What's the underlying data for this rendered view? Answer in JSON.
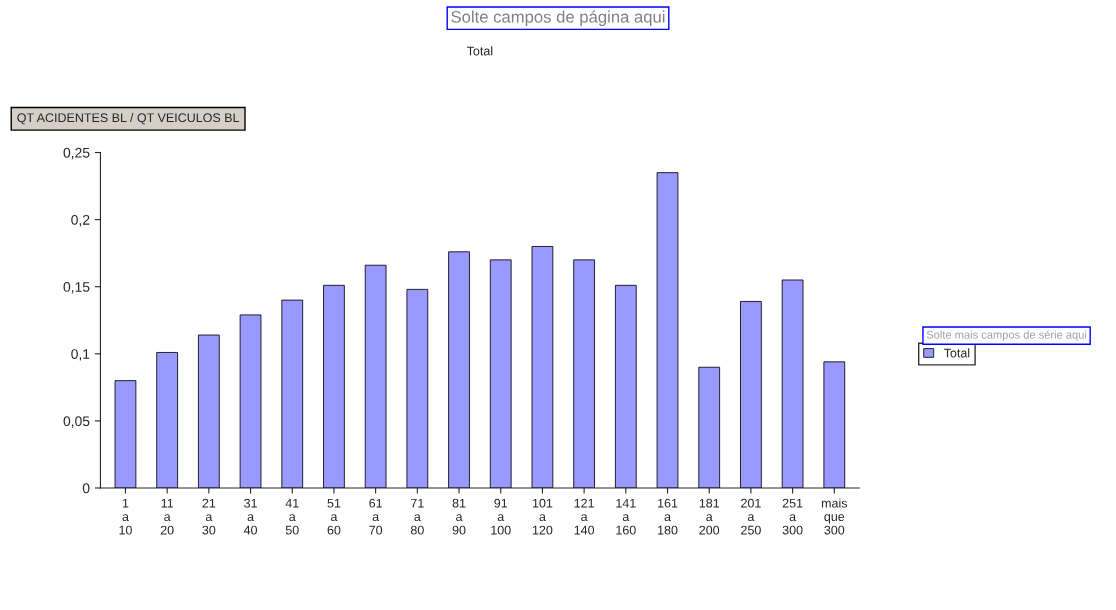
{
  "chart_data": {
    "type": "bar",
    "title": "Total",
    "ylabel": "QT ACIDENTES BL / QT VEICULOS BL",
    "annotations": [
      "Solte campos de página aqui",
      "Solte mais campos de série aqui"
    ],
    "categories": [
      "1 a 10",
      "11 a 20",
      "21 a 30",
      "31 a 40",
      "41 a 50",
      "51 a 60",
      "61 a 70",
      "71 a 80",
      "81 a 90",
      "91 a 100",
      "101 a 120",
      "121 a 140",
      "141 a 160",
      "161 a 180",
      "181 a 200",
      "201 a 250",
      "251 a 300",
      "mais que 300"
    ],
    "series": [
      {
        "name": "Total",
        "color": "#9999ff",
        "values": [
          0.08,
          0.101,
          0.114,
          0.129,
          0.14,
          0.151,
          0.166,
          0.148,
          0.176,
          0.17,
          0.18,
          0.17,
          0.151,
          0.235,
          0.09,
          0.139,
          0.155,
          0.094
        ]
      }
    ],
    "ylim": [
      0,
      0.25
    ],
    "yticks": [
      0,
      {
        "value": 0.05,
        "label": "0,05"
      },
      {
        "value": 0.1,
        "label": "0,1"
      },
      {
        "value": 0.15,
        "label": "0,15"
      },
      {
        "value": 0.2,
        "label": "0,2"
      },
      {
        "value": 0.25,
        "label": "0,25"
      }
    ],
    "grid": false,
    "legend": "right"
  }
}
